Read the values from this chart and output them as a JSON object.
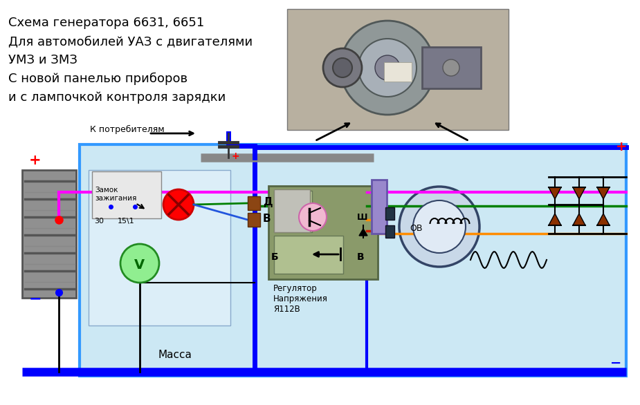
{
  "bg_color": "#ffffff",
  "circuit_bg": "#cce8f4",
  "left_panel_bg": "#dceef8",
  "regulator_bg": "#8a9a6a",
  "regulator_inner_bg": "#b0c090",
  "bus_bar_color": "#808080",
  "blue_line": "#0000ff",
  "blue_line2": "#2255dd",
  "magenta_line": "#ff00ff",
  "green_line": "#008000",
  "orange_line": "#ff8c00",
  "red_line": "#ff0000",
  "brown_line": "#8B4513",
  "black_line": "#000000",
  "title_text": "Схема генератора 6631, 6651\nДля автомобилей УАЗ с двигателями\nУМЗ и ЗМЗ\nС новой панелью приборов\nи с лампочкой контроля зарядки",
  "label_consumers": "К потребителям",
  "label_ignition": "Замок\nзажигания",
  "label_30": "30",
  "label_15_1": "15\\1",
  "label_mass": "Масса",
  "label_D": "Д",
  "label_B_upper": "В",
  "label_regulator": "Регулятор\nНапряжения\nЯ112В",
  "label_B_reg": "Б",
  "label_V_reg": "В",
  "label_Sh": "Ш",
  "label_plus_left": "+",
  "label_minus_left": "−",
  "label_plus_right": "+",
  "label_minus_right": "−",
  "label_OV": "ОВ",
  "font_size_main": 13,
  "font_size_small": 9,
  "font_size_label": 10
}
